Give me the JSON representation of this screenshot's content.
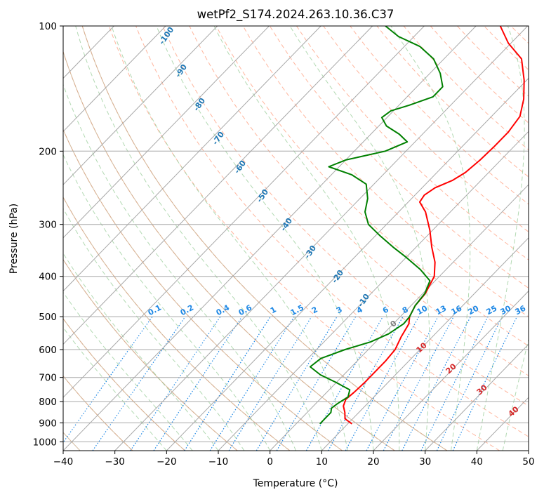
{
  "chart_data": {
    "type": "line",
    "title": "wetPf2_S174.2024.263.10.36.C37",
    "xlabel": "Temperature (°C)",
    "ylabel": "Pressure (hPa)",
    "xlim": [
      -40,
      50
    ],
    "ylim": [
      1050,
      100
    ],
    "y_scale": "log",
    "x_ticks": [
      -40,
      -30,
      -20,
      -10,
      0,
      10,
      20,
      30,
      40,
      50
    ],
    "y_ticks": [
      100,
      200,
      300,
      400,
      500,
      600,
      700,
      800,
      900,
      1000
    ],
    "grid": true,
    "series": [
      {
        "role": "temperature",
        "color": "#ff0000",
        "points": [
          {
            "p": 905,
            "t": 10.8
          },
          {
            "p": 880,
            "t": 8.5
          },
          {
            "p": 850,
            "t": 7.3
          },
          {
            "p": 820,
            "t": 5.8
          },
          {
            "p": 790,
            "t": 5.0
          },
          {
            "p": 760,
            "t": 5.3
          },
          {
            "p": 720,
            "t": 5.5
          },
          {
            "p": 680,
            "t": 5.5
          },
          {
            "p": 640,
            "t": 5.5
          },
          {
            "p": 600,
            "t": 5.2
          },
          {
            "p": 560,
            "t": 4.0
          },
          {
            "p": 520,
            "t": 3.0
          },
          {
            "p": 500,
            "t": 1.8
          },
          {
            "p": 470,
            "t": 0.8
          },
          {
            "p": 440,
            "t": 0.5
          },
          {
            "p": 400,
            "t": -1.0
          },
          {
            "p": 370,
            "t": -3.5
          },
          {
            "p": 340,
            "t": -7.0
          },
          {
            "p": 310,
            "t": -10.5
          },
          {
            "p": 280,
            "t": -14.8
          },
          {
            "p": 265,
            "t": -17.8
          },
          {
            "p": 255,
            "t": -18.2
          },
          {
            "p": 245,
            "t": -17.5
          },
          {
            "p": 235,
            "t": -15.5
          },
          {
            "p": 225,
            "t": -14.5
          },
          {
            "p": 210,
            "t": -14.0
          },
          {
            "p": 195,
            "t": -13.8
          },
          {
            "p": 180,
            "t": -13.8
          },
          {
            "p": 165,
            "t": -14.5
          },
          {
            "p": 150,
            "t": -17.0
          },
          {
            "p": 135,
            "t": -20.5
          },
          {
            "p": 120,
            "t": -25.0
          },
          {
            "p": 110,
            "t": -30.5
          },
          {
            "p": 100,
            "t": -35.3
          }
        ]
      },
      {
        "role": "dewpoint",
        "color": "#008000",
        "points": [
          {
            "p": 905,
            "t": 4.6
          },
          {
            "p": 880,
            "t": 4.6
          },
          {
            "p": 850,
            "t": 4.6
          },
          {
            "p": 830,
            "t": 3.9
          },
          {
            "p": 810,
            "t": 4.2
          },
          {
            "p": 780,
            "t": 5.0
          },
          {
            "p": 750,
            "t": 4.0
          },
          {
            "p": 720,
            "t": 0.0
          },
          {
            "p": 690,
            "t": -4.5
          },
          {
            "p": 660,
            "t": -8.0
          },
          {
            "p": 630,
            "t": -7.5
          },
          {
            "p": 600,
            "t": -4.5
          },
          {
            "p": 575,
            "t": -1.0
          },
          {
            "p": 550,
            "t": 1.0
          },
          {
            "p": 520,
            "t": 2.0
          },
          {
            "p": 500,
            "t": 1.8
          },
          {
            "p": 470,
            "t": 0.8
          },
          {
            "p": 440,
            "t": 0.4
          },
          {
            "p": 410,
            "t": -1.0
          },
          {
            "p": 385,
            "t": -5.0
          },
          {
            "p": 360,
            "t": -10.0
          },
          {
            "p": 340,
            "t": -14.5
          },
          {
            "p": 320,
            "t": -19.0
          },
          {
            "p": 300,
            "t": -23.5
          },
          {
            "p": 280,
            "t": -26.5
          },
          {
            "p": 260,
            "t": -28.5
          },
          {
            "p": 240,
            "t": -31.5
          },
          {
            "p": 228,
            "t": -36.0
          },
          {
            "p": 218,
            "t": -42.0
          },
          {
            "p": 210,
            "t": -40.0
          },
          {
            "p": 200,
            "t": -34.0
          },
          {
            "p": 190,
            "t": -31.5
          },
          {
            "p": 182,
            "t": -34.5
          },
          {
            "p": 174,
            "t": -38.5
          },
          {
            "p": 166,
            "t": -41.0
          },
          {
            "p": 160,
            "t": -40.5
          },
          {
            "p": 155,
            "t": -38.0
          },
          {
            "p": 148,
            "t": -35.0
          },
          {
            "p": 140,
            "t": -35.0
          },
          {
            "p": 130,
            "t": -38.0
          },
          {
            "p": 120,
            "t": -42.0
          },
          {
            "p": 112,
            "t": -47.0
          },
          {
            "p": 106,
            "t": -53.0
          },
          {
            "p": 100,
            "t": -57.5
          }
        ]
      }
    ],
    "dry_adiabat_labels": [
      "-100",
      "-90",
      "-80",
      "-70",
      "-60",
      "-50",
      "-40",
      "-30",
      "-20",
      "-10"
    ],
    "mixing_ratio_labels": [
      "0.1",
      "0.2",
      "0.4",
      "0.6",
      "1",
      "1.5",
      "2",
      "3",
      "4",
      "6",
      "8",
      "10",
      "13",
      "16",
      "20",
      "25",
      "30",
      "36"
    ],
    "moist_adiabat_labels": [
      "0",
      "10",
      "20",
      "30",
      "40"
    ]
  }
}
